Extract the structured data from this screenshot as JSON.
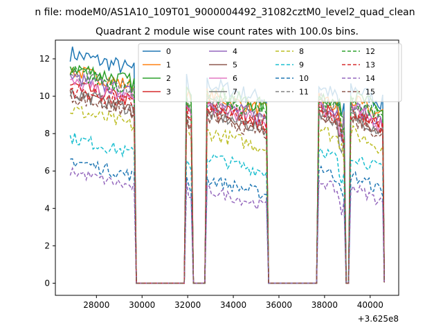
{
  "figure": {
    "suptitle": "n file: modeM0/AS1A10_109T01_9000004492_31082cztM0_level2_quad_clean",
    "title": "Quadrant 2 module wise count rates with 100.0s bins.",
    "offset_text": "+3.625e8"
  },
  "chart_data": {
    "type": "line",
    "title": "Quadrant 2 module wise count rates with 100.0s bins.",
    "xlabel": "",
    "ylabel": "",
    "x_offset": 362500000,
    "xlim": [
      26200,
      41250
    ],
    "ylim": [
      -0.65,
      13.0
    ],
    "x_ticks": [
      28000,
      30000,
      32000,
      34000,
      36000,
      38000,
      40000
    ],
    "x_tick_labels": [
      "28000",
      "30000",
      "32000",
      "34000",
      "36000",
      "38000",
      "40000"
    ],
    "y_ticks": [
      0,
      2,
      4,
      6,
      8,
      10,
      12
    ],
    "y_tick_labels": [
      "0",
      "2",
      "4",
      "6",
      "8",
      "10",
      "12"
    ],
    "grid": false,
    "legend_position": "top-center",
    "legend_columns": 4,
    "segments": [
      [
        26850,
        29700
      ],
      [
        31900,
        32150
      ],
      [
        32800,
        35500
      ],
      [
        37700,
        38850
      ],
      [
        39150,
        40600
      ]
    ],
    "gap_value": 0,
    "series": [
      {
        "name": "0",
        "color": "#1f77b4",
        "dash": "solid",
        "level": [
          12.3,
          11.0,
          10.7,
          10.6,
          10.5
        ],
        "noise": 0.45
      },
      {
        "name": "1",
        "color": "#ff7f0e",
        "dash": "solid",
        "level": [
          11.4,
          10.5,
          10.1,
          10.0,
          9.8
        ],
        "noise": 0.4
      },
      {
        "name": "2",
        "color": "#2ca02c",
        "dash": "solid",
        "level": [
          11.6,
          10.6,
          10.3,
          10.2,
          10.1
        ],
        "noise": 0.45
      },
      {
        "name": "3",
        "color": "#d62728",
        "dash": "solid",
        "level": [
          10.6,
          9.8,
          9.5,
          9.6,
          9.3
        ],
        "noise": 0.4
      },
      {
        "name": "4",
        "color": "#9467bd",
        "dash": "solid",
        "level": [
          11.0,
          10.0,
          9.7,
          9.8,
          9.5
        ],
        "noise": 0.4
      },
      {
        "name": "5",
        "color": "#8c564b",
        "dash": "solid",
        "level": [
          10.1,
          9.2,
          9.0,
          9.2,
          9.0
        ],
        "noise": 0.4
      },
      {
        "name": "6",
        "color": "#e377c2",
        "dash": "solid",
        "level": [
          10.7,
          9.8,
          9.5,
          9.5,
          9.3
        ],
        "noise": 0.4
      },
      {
        "name": "7",
        "color": "#7f7f7f",
        "dash": "solid",
        "level": [
          10.2,
          9.4,
          9.1,
          9.3,
          9.0
        ],
        "noise": 0.4
      },
      {
        "name": "8",
        "color": "#bcbd22",
        "dash": "dashed",
        "level": [
          9.3,
          8.4,
          8.1,
          8.4,
          8.1
        ],
        "noise": 0.4
      },
      {
        "name": "9",
        "color": "#17becf",
        "dash": "dashed",
        "level": [
          7.8,
          7.0,
          6.8,
          7.3,
          6.9
        ],
        "noise": 0.35
      },
      {
        "name": "10",
        "color": "#1f77b4",
        "dash": "dashed",
        "level": [
          6.6,
          5.9,
          5.6,
          6.3,
          5.8
        ],
        "noise": 0.35
      },
      {
        "name": "11",
        "color": "#7f7f7f",
        "dash": "dashed",
        "level": [
          11.2,
          10.1,
          9.8,
          9.9,
          9.6
        ],
        "noise": 0.45
      },
      {
        "name": "12",
        "color": "#2ca02c",
        "dash": "dashed",
        "level": [
          11.3,
          10.3,
          10.0,
          10.1,
          9.8
        ],
        "noise": 0.45
      },
      {
        "name": "13",
        "color": "#d62728",
        "dash": "dashed",
        "level": [
          10.4,
          9.6,
          9.3,
          9.5,
          9.1
        ],
        "noise": 0.4
      },
      {
        "name": "14",
        "color": "#9467bd",
        "dash": "dashed",
        "level": [
          6.0,
          5.3,
          5.0,
          5.6,
          5.2
        ],
        "noise": 0.3
      },
      {
        "name": "15",
        "color": "#8c564b",
        "dash": "dashed",
        "level": [
          10.0,
          9.1,
          8.9,
          9.1,
          8.8
        ],
        "noise": 0.4
      }
    ]
  }
}
